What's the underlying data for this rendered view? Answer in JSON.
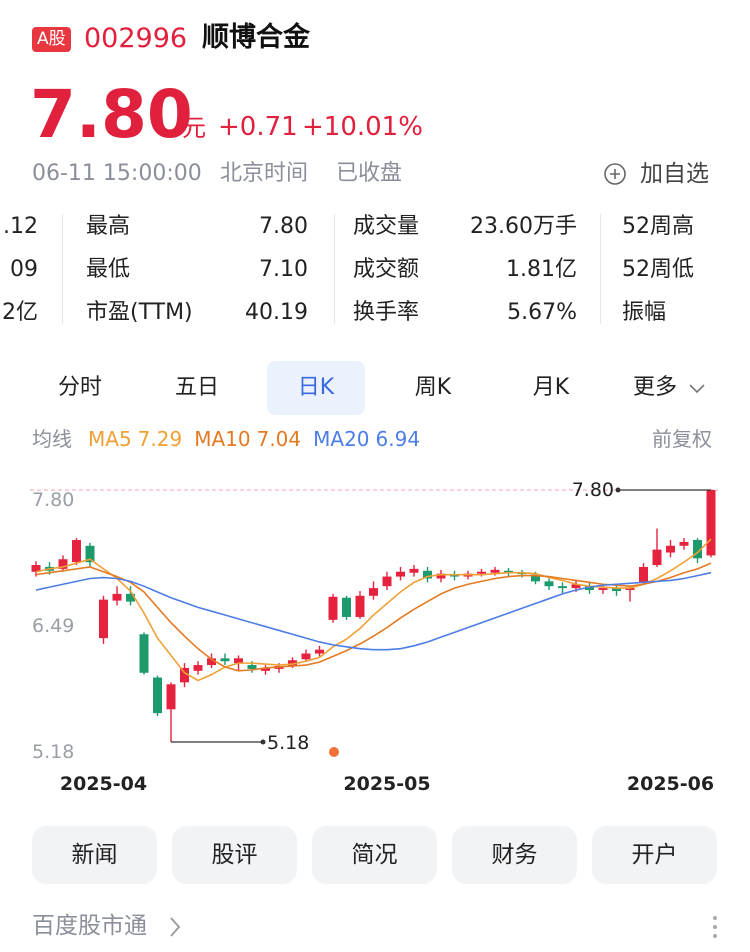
{
  "header": {
    "badge": "A股",
    "code": "002996",
    "name": "顺博合金"
  },
  "quote": {
    "price": "7.80",
    "unit": "元",
    "change": "+0.71",
    "change_pct": "+10.01%",
    "time": "06-11 15:00:00",
    "timezone": "北京时间",
    "status": "已收盘",
    "watch": "加自选"
  },
  "stats": {
    "clipped": [
      ".12",
      "09",
      "2亿"
    ],
    "rows": [
      [
        {
          "label": "最高",
          "value": "7.80"
        },
        {
          "label": "成交量",
          "value": "23.60万手"
        },
        {
          "label": "52周高"
        }
      ],
      [
        {
          "label": "最低",
          "value": "7.10"
        },
        {
          "label": "成交额",
          "value": "1.81亿"
        },
        {
          "label": "52周低"
        }
      ],
      [
        {
          "label": "市盈(TTM)",
          "value": "40.19"
        },
        {
          "label": "换手率",
          "value": "5.67%"
        },
        {
          "label": "振幅"
        }
      ]
    ]
  },
  "tabs": [
    "分时",
    "五日",
    "日K",
    "周K",
    "月K",
    "更多"
  ],
  "selected_tab": 2,
  "chart_data": {
    "type": "candlestick",
    "legend_title": "均线",
    "adjust": "前复权",
    "categories": [
      null,
      null,
      null,
      null,
      null,
      "2025-04",
      null,
      null,
      null,
      null,
      null,
      null,
      null,
      null,
      null,
      null,
      null,
      null,
      null,
      null,
      null,
      null,
      null,
      null,
      null,
      null,
      "2025-05",
      null,
      null,
      null,
      null,
      null,
      null,
      null,
      null,
      null,
      null,
      null,
      null,
      null,
      null,
      null,
      null,
      null,
      null,
      null,
      null,
      "2025-06",
      null,
      null,
      null
    ],
    "open": [
      6.95,
      7.0,
      6.98,
      7.05,
      7.22,
      6.26,
      6.65,
      6.72,
      6.3,
      5.85,
      5.52,
      5.8,
      5.92,
      5.98,
      6.05,
      6.0,
      5.98,
      5.92,
      5.94,
      5.97,
      6.04,
      6.1,
      6.45,
      6.68,
      6.48,
      6.7,
      6.8,
      6.9,
      6.94,
      6.96,
      6.88,
      6.92,
      6.9,
      6.93,
      6.94,
      6.96,
      6.94,
      6.92,
      6.85,
      6.8,
      6.78,
      6.8,
      6.76,
      6.78,
      6.76,
      6.84,
      7.02,
      7.15,
      7.22,
      7.28,
      7.12
    ],
    "high": [
      7.06,
      7.05,
      7.12,
      7.3,
      7.25,
      6.7,
      6.8,
      6.8,
      6.32,
      5.87,
      5.8,
      6.0,
      6.02,
      6.1,
      6.1,
      6.08,
      6.02,
      5.98,
      6.0,
      6.06,
      6.14,
      6.18,
      6.72,
      6.7,
      6.75,
      6.85,
      6.95,
      7.0,
      7.02,
      7.0,
      6.97,
      6.96,
      6.96,
      6.98,
      7.0,
      6.99,
      6.97,
      6.95,
      6.88,
      6.84,
      6.86,
      6.84,
      6.82,
      6.82,
      6.8,
      7.04,
      7.4,
      7.28,
      7.3,
      7.3,
      7.8
    ],
    "low": [
      6.9,
      6.92,
      6.95,
      7.02,
      7.0,
      6.2,
      6.6,
      6.6,
      5.88,
      5.45,
      5.18,
      5.75,
      5.88,
      5.95,
      5.98,
      5.92,
      5.9,
      5.88,
      5.9,
      5.95,
      6.02,
      6.07,
      6.42,
      6.45,
      6.46,
      6.66,
      6.76,
      6.86,
      6.9,
      6.84,
      6.84,
      6.86,
      6.87,
      6.9,
      6.91,
      6.9,
      6.89,
      6.82,
      6.76,
      6.72,
      6.74,
      6.72,
      6.72,
      6.7,
      6.64,
      6.82,
      7.0,
      7.1,
      7.18,
      7.04,
      7.1
    ],
    "close": [
      7.02,
      6.96,
      7.08,
      7.28,
      7.05,
      6.66,
      6.72,
      6.64,
      5.9,
      5.48,
      5.78,
      5.95,
      5.98,
      6.05,
      6.02,
      6.05,
      5.94,
      5.95,
      5.97,
      6.03,
      6.1,
      6.14,
      6.69,
      6.48,
      6.7,
      6.78,
      6.9,
      6.95,
      6.98,
      6.88,
      6.93,
      6.9,
      6.93,
      6.95,
      6.97,
      6.94,
      6.93,
      6.85,
      6.8,
      6.78,
      6.82,
      6.76,
      6.78,
      6.75,
      6.78,
      7.0,
      7.18,
      7.22,
      7.26,
      7.09,
      7.8
    ],
    "up_color": "#e5233f",
    "down_color": "#1c9a6b",
    "series": [
      {
        "name": "MA5",
        "color": "#f0a035",
        "values": [
          6.95,
          6.98,
          7.0,
          7.04,
          7.08,
          6.98,
          6.88,
          6.75,
          6.52,
          6.26,
          6.08,
          5.9,
          5.82,
          5.88,
          5.96,
          6.0,
          6.0,
          5.99,
          5.98,
          5.99,
          6.02,
          6.06,
          6.17,
          6.25,
          6.36,
          6.5,
          6.62,
          6.74,
          6.84,
          6.9,
          6.92,
          6.92,
          6.92,
          6.92,
          6.93,
          6.94,
          6.94,
          6.93,
          6.89,
          6.86,
          6.82,
          6.8,
          6.79,
          6.78,
          6.78,
          6.82,
          6.88,
          6.96,
          7.05,
          7.15,
          7.29
        ]
      },
      {
        "name": "MA10",
        "color": "#e47a22",
        "values": [
          6.92,
          6.94,
          6.96,
          6.98,
          7.0,
          6.95,
          6.9,
          6.84,
          6.74,
          6.58,
          6.42,
          6.28,
          6.15,
          6.04,
          5.96,
          5.92,
          5.93,
          5.95,
          5.96,
          5.97,
          5.98,
          6.01,
          6.07,
          6.13,
          6.2,
          6.28,
          6.37,
          6.47,
          6.56,
          6.64,
          6.72,
          6.78,
          6.82,
          6.85,
          6.88,
          6.9,
          6.91,
          6.91,
          6.9,
          6.88,
          6.86,
          6.84,
          6.82,
          6.81,
          6.8,
          6.82,
          6.85,
          6.89,
          6.94,
          6.98,
          7.04
        ]
      },
      {
        "name": "MA20",
        "color": "#4d7de6",
        "values": [
          6.76,
          6.79,
          6.82,
          6.85,
          6.88,
          6.89,
          6.88,
          6.85,
          6.8,
          6.74,
          6.68,
          6.63,
          6.58,
          6.54,
          6.5,
          6.46,
          6.42,
          6.38,
          6.34,
          6.3,
          6.26,
          6.22,
          6.19,
          6.17,
          6.15,
          6.14,
          6.14,
          6.15,
          6.18,
          6.22,
          6.27,
          6.32,
          6.37,
          6.42,
          6.47,
          6.52,
          6.57,
          6.62,
          6.67,
          6.72,
          6.76,
          6.79,
          6.81,
          6.82,
          6.83,
          6.84,
          6.85,
          6.86,
          6.88,
          6.91,
          6.94
        ]
      }
    ],
    "ylim": [
      5.18,
      7.8
    ],
    "yticks": [
      {
        "value": 7.8,
        "label": "7.80"
      },
      6.49,
      5.18
    ],
    "high_label": "7.80",
    "low_label": "5.18"
  },
  "buttons": [
    "新闻",
    "股评",
    "简况",
    "财务",
    "开户"
  ],
  "footer": {
    "brand": "百度股市通"
  }
}
